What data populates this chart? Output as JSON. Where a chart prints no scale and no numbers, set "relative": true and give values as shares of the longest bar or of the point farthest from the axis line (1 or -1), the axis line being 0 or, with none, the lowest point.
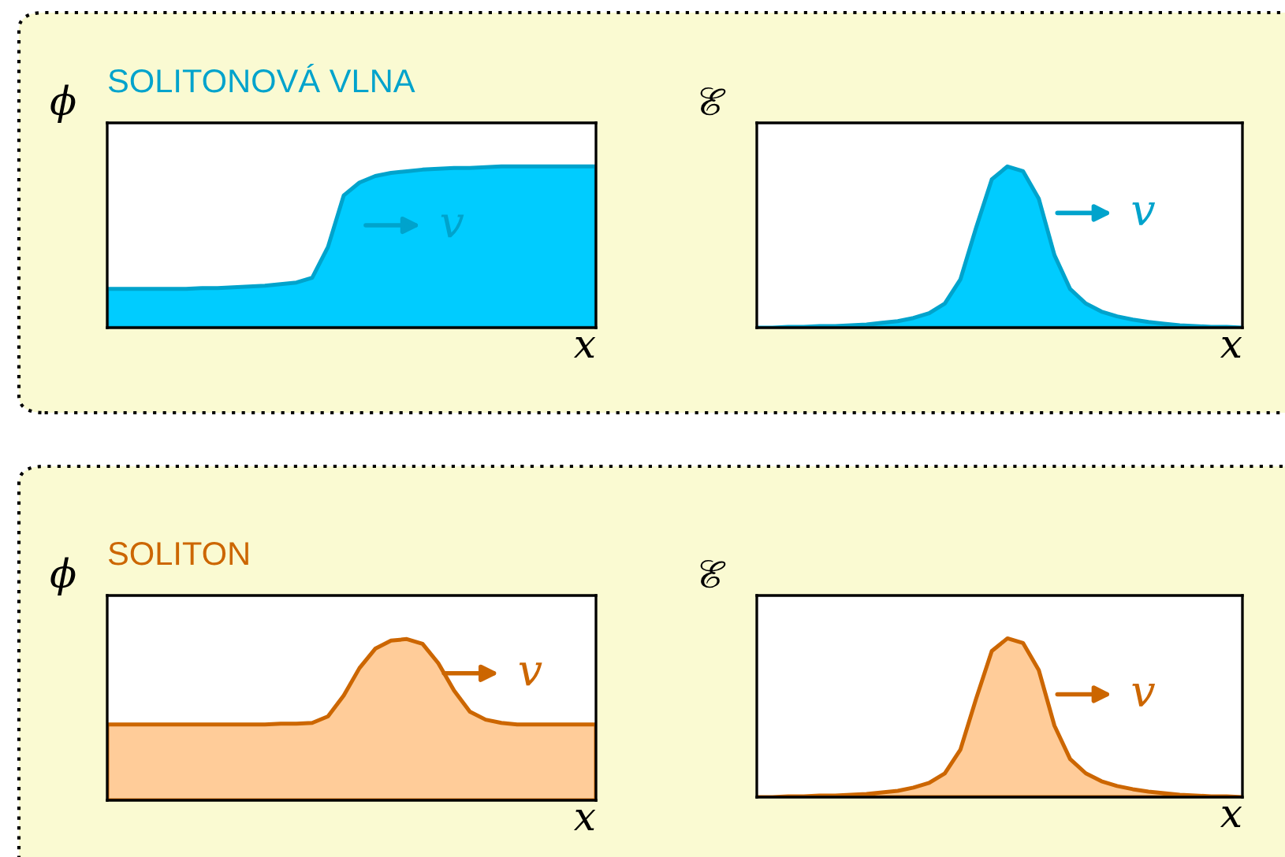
{
  "chart_data": [
    {
      "type": "area",
      "relative": true,
      "title": "SOLITONOVÁ VLNA",
      "ylabel": "ϕ",
      "xlabel": "x",
      "categories": [
        null,
        null,
        null,
        null,
        null,
        null,
        null,
        null,
        null,
        null,
        null,
        null,
        null,
        null,
        null,
        null,
        null,
        null,
        null,
        null,
        null,
        null,
        null,
        null,
        null,
        null,
        null,
        null,
        null,
        null,
        null,
        null
      ],
      "series": [
        {
          "color": "#00ccff",
          "values": [
            0.24,
            0.24,
            0.24,
            0.24,
            0.24,
            0.24,
            0.245,
            0.245,
            0.25,
            0.255,
            0.26,
            0.27,
            0.28,
            0.31,
            0.5,
            0.82,
            0.9,
            0.94,
            0.96,
            0.97,
            0.98,
            0.985,
            0.99,
            0.99,
            0.995,
            1,
            1,
            1,
            1,
            1,
            1,
            1
          ]
        }
      ],
      "annotations": [
        "v"
      ]
    },
    {
      "type": "area",
      "relative": true,
      "ylabel": "ℰ",
      "xlabel": "x",
      "categories": [
        null,
        null,
        null,
        null,
        null,
        null,
        null,
        null,
        null,
        null,
        null,
        null,
        null,
        null,
        null,
        null,
        null,
        null,
        null,
        null,
        null,
        null,
        null,
        null,
        null,
        null,
        null,
        null,
        null,
        null,
        null,
        null
      ],
      "series": [
        {
          "color": "#00ccff",
          "values": [
            0,
            0,
            0.005,
            0.005,
            0.01,
            0.01,
            0.015,
            0.02,
            0.03,
            0.04,
            0.06,
            0.09,
            0.15,
            0.3,
            0.62,
            0.92,
            1.0,
            0.97,
            0.8,
            0.45,
            0.24,
            0.15,
            0.1,
            0.07,
            0.05,
            0.035,
            0.025,
            0.015,
            0.01,
            0.005,
            0.005,
            0
          ]
        }
      ],
      "annotations": [
        "v"
      ]
    },
    {
      "type": "area",
      "relative": true,
      "title": "SOLITON",
      "ylabel": "ϕ",
      "xlabel": "x",
      "categories": [
        null,
        null,
        null,
        null,
        null,
        null,
        null,
        null,
        null,
        null,
        null,
        null,
        null,
        null,
        null,
        null,
        null,
        null,
        null,
        null,
        null,
        null,
        null,
        null,
        null,
        null,
        null,
        null,
        null,
        null,
        null,
        null
      ],
      "series": [
        {
          "color": "#ffcc99",
          "values": [
            0.47,
            0.47,
            0.47,
            0.47,
            0.47,
            0.47,
            0.47,
            0.47,
            0.47,
            0.47,
            0.47,
            0.475,
            0.475,
            0.48,
            0.52,
            0.65,
            0.82,
            0.94,
            0.99,
            1,
            0.97,
            0.85,
            0.68,
            0.55,
            0.5,
            0.48,
            0.47,
            0.47,
            0.47,
            0.47,
            0.47,
            0.47
          ]
        }
      ],
      "annotations": [
        "v"
      ]
    },
    {
      "type": "area",
      "relative": true,
      "ylabel": "ℰ",
      "xlabel": "x",
      "categories": [
        null,
        null,
        null,
        null,
        null,
        null,
        null,
        null,
        null,
        null,
        null,
        null,
        null,
        null,
        null,
        null,
        null,
        null,
        null,
        null,
        null,
        null,
        null,
        null,
        null,
        null,
        null,
        null,
        null,
        null,
        null,
        null
      ],
      "series": [
        {
          "color": "#ffcc99",
          "values": [
            0,
            0,
            0.005,
            0.005,
            0.01,
            0.01,
            0.015,
            0.02,
            0.03,
            0.04,
            0.06,
            0.09,
            0.15,
            0.3,
            0.62,
            0.92,
            1.0,
            0.97,
            0.8,
            0.45,
            0.24,
            0.15,
            0.1,
            0.07,
            0.05,
            0.035,
            0.025,
            0.015,
            0.01,
            0.005,
            0.005,
            0
          ]
        }
      ],
      "annotations": [
        "v"
      ]
    }
  ]
}
